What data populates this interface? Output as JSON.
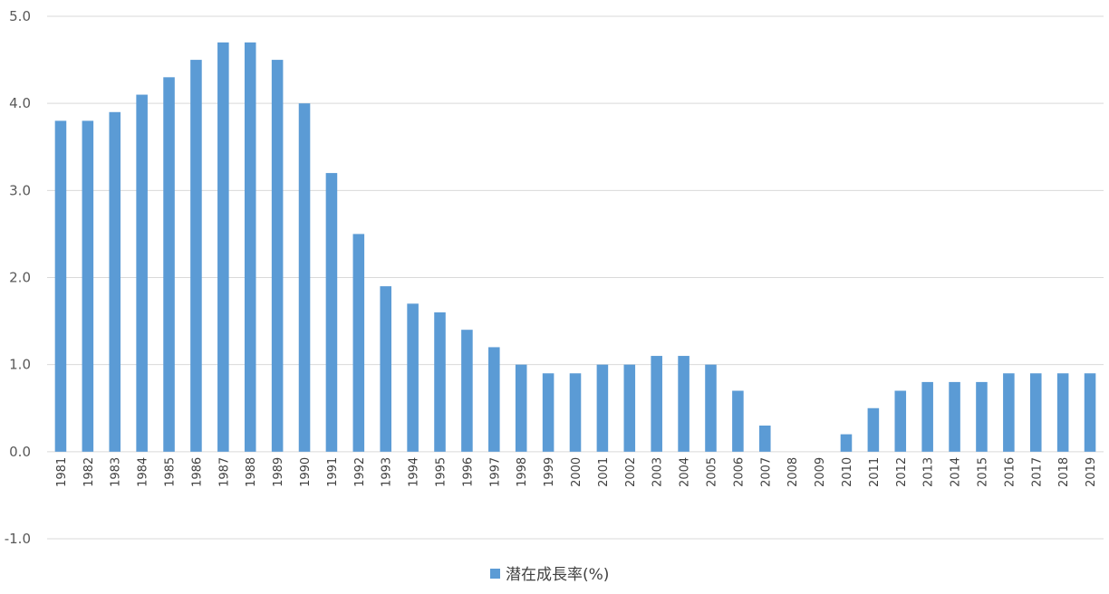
{
  "chart_data": {
    "type": "bar",
    "title": "",
    "xlabel": "",
    "ylabel": "",
    "categories": [
      "1981",
      "1982",
      "1983",
      "1984",
      "1985",
      "1986",
      "1987",
      "1988",
      "1989",
      "1990",
      "1991",
      "1992",
      "1993",
      "1994",
      "1995",
      "1996",
      "1997",
      "1998",
      "1999",
      "2000",
      "2001",
      "2002",
      "2003",
      "2004",
      "2005",
      "2006",
      "2007",
      "2008",
      "2009",
      "2010",
      "2011",
      "2012",
      "2013",
      "2014",
      "2015",
      "2016",
      "2017",
      "2018",
      "2019"
    ],
    "series": [
      {
        "name": "潜在成長率(%)",
        "color": "#5b9bd5",
        "values": [
          3.8,
          3.8,
          3.9,
          4.1,
          4.3,
          4.5,
          4.7,
          4.7,
          4.5,
          4.0,
          3.2,
          2.5,
          1.9,
          1.7,
          1.6,
          1.4,
          1.2,
          1.0,
          0.9,
          0.9,
          1.0,
          1.0,
          1.1,
          1.1,
          1.0,
          0.7,
          0.3,
          0.0,
          0.0,
          0.2,
          0.5,
          0.7,
          0.8,
          0.8,
          0.8,
          0.9,
          0.9,
          0.9,
          0.9
        ]
      }
    ],
    "ylim": [
      -1.0,
      5.0
    ],
    "yticks": [
      "-1.0",
      "0.0",
      "1.0",
      "2.0",
      "3.0",
      "4.0",
      "5.0"
    ],
    "grid": true,
    "legend": "bottom",
    "x_tick_rotation": "vertical"
  }
}
